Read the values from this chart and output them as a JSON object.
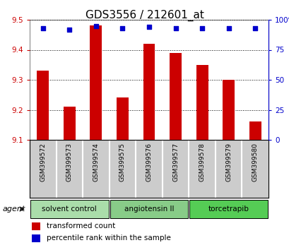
{
  "title": "GDS3556 / 212601_at",
  "samples": [
    "GSM399572",
    "GSM399573",
    "GSM399574",
    "GSM399575",
    "GSM399576",
    "GSM399577",
    "GSM399578",
    "GSM399579",
    "GSM399580"
  ],
  "bar_values": [
    9.33,
    9.21,
    9.48,
    9.24,
    9.42,
    9.39,
    9.35,
    9.3,
    9.16
  ],
  "bar_base": 9.1,
  "percentile_values": [
    93,
    92,
    95,
    93,
    94,
    93,
    93,
    93,
    93
  ],
  "bar_color": "#cc0000",
  "dot_color": "#0000cc",
  "ylim_left": [
    9.1,
    9.5
  ],
  "ylim_right": [
    0,
    100
  ],
  "yticks_left": [
    9.1,
    9.2,
    9.3,
    9.4,
    9.5
  ],
  "yticks_right": [
    0,
    25,
    50,
    75,
    100
  ],
  "ytick_labels_right": [
    "0",
    "25",
    "50",
    "75",
    "100%"
  ],
  "groups": [
    {
      "label": "solvent control",
      "start": 0,
      "end": 3,
      "color": "#aaddaa"
    },
    {
      "label": "angiotensin II",
      "start": 3,
      "end": 6,
      "color": "#88cc88"
    },
    {
      "label": "torcetrapib",
      "start": 6,
      "end": 9,
      "color": "#55cc55"
    }
  ],
  "agent_label": "agent",
  "legend_bar_label": "transformed count",
  "legend_dot_label": "percentile rank within the sample",
  "title_fontsize": 11,
  "axis_color_left": "#cc0000",
  "axis_color_right": "#0000cc",
  "background_color": "#ffffff",
  "plot_bg_color": "#ffffff",
  "sample_box_color": "#cccccc"
}
